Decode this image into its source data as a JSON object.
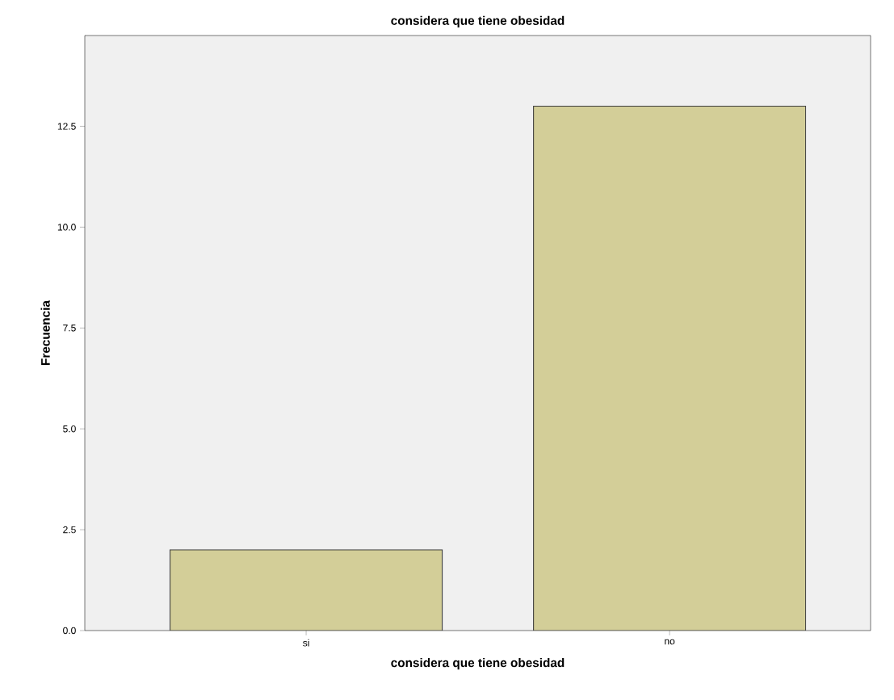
{
  "chart_data": {
    "type": "bar",
    "title": "considera que tiene obesidad",
    "xlabel": "considera que tiene obesidad",
    "ylabel": "Frecuencia",
    "categories": [
      "si",
      "no"
    ],
    "values": [
      2,
      13
    ],
    "color": "#d3ce98",
    "ylim": [
      0,
      14.75
    ],
    "yticks": [
      {
        "value": 0,
        "label": "0.0"
      },
      2.5,
      {
        "value": 5,
        "label": "5.0"
      },
      7.5,
      {
        "value": 10,
        "label": "10.0"
      },
      12.5
    ],
    "grid": false
  }
}
